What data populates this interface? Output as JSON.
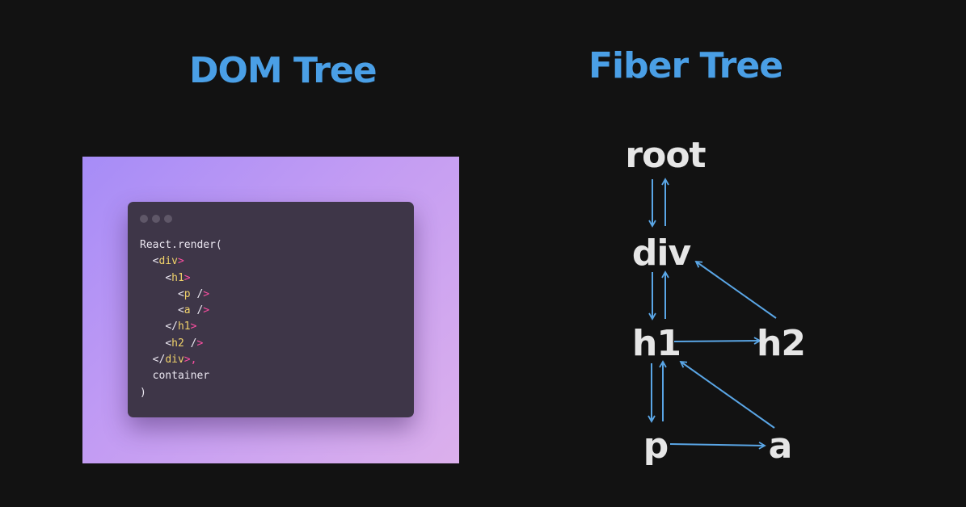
{
  "headings": {
    "dom": "DOM Tree",
    "fiber": "Fiber Tree"
  },
  "code_window": {
    "dots": 3,
    "lines": [
      [
        {
          "t": "React.render(",
          "c": "br"
        }
      ],
      [
        {
          "t": "  ",
          "c": "br"
        },
        {
          "t": "<",
          "c": "br"
        },
        {
          "t": "div",
          "c": "tag"
        },
        {
          "t": ">",
          "c": "pink"
        }
      ],
      [
        {
          "t": "    ",
          "c": "br"
        },
        {
          "t": "<",
          "c": "br"
        },
        {
          "t": "h1",
          "c": "tag"
        },
        {
          "t": ">",
          "c": "pink"
        }
      ],
      [
        {
          "t": "      ",
          "c": "br"
        },
        {
          "t": "<",
          "c": "br"
        },
        {
          "t": "p",
          "c": "tag"
        },
        {
          "t": " /",
          "c": "br"
        },
        {
          "t": ">",
          "c": "pink"
        }
      ],
      [
        {
          "t": "      ",
          "c": "br"
        },
        {
          "t": "<",
          "c": "br"
        },
        {
          "t": "a",
          "c": "tag"
        },
        {
          "t": " /",
          "c": "br"
        },
        {
          "t": ">",
          "c": "pink"
        }
      ],
      [
        {
          "t": "    ",
          "c": "br"
        },
        {
          "t": "</",
          "c": "br"
        },
        {
          "t": "h1",
          "c": "tag"
        },
        {
          "t": ">",
          "c": "pink"
        }
      ],
      [
        {
          "t": "    ",
          "c": "br"
        },
        {
          "t": "<",
          "c": "br"
        },
        {
          "t": "h2",
          "c": "tag"
        },
        {
          "t": " /",
          "c": "br"
        },
        {
          "t": ">",
          "c": "pink"
        }
      ],
      [
        {
          "t": "  ",
          "c": "br"
        },
        {
          "t": "</",
          "c": "br"
        },
        {
          "t": "div",
          "c": "tag"
        },
        {
          "t": ">,",
          "c": "pink"
        }
      ],
      [
        {
          "t": "  container",
          "c": "br"
        }
      ],
      [
        {
          "t": ")",
          "c": "br"
        }
      ]
    ]
  },
  "fiber_tree": {
    "nodes": [
      {
        "id": "root",
        "label": "root"
      },
      {
        "id": "div",
        "label": "div"
      },
      {
        "id": "h1",
        "label": "h1"
      },
      {
        "id": "h2",
        "label": "h2"
      },
      {
        "id": "p",
        "label": "p"
      },
      {
        "id": "a",
        "label": "a"
      }
    ],
    "edges": [
      {
        "from": "root",
        "to": "div",
        "relation": "child"
      },
      {
        "from": "div",
        "to": "root",
        "relation": "return"
      },
      {
        "from": "div",
        "to": "h1",
        "relation": "child"
      },
      {
        "from": "h1",
        "to": "div",
        "relation": "return"
      },
      {
        "from": "h1",
        "to": "h2",
        "relation": "sibling"
      },
      {
        "from": "h2",
        "to": "div",
        "relation": "return"
      },
      {
        "from": "h1",
        "to": "p",
        "relation": "child"
      },
      {
        "from": "p",
        "to": "h1",
        "relation": "return"
      },
      {
        "from": "p",
        "to": "a",
        "relation": "sibling"
      },
      {
        "from": "a",
        "to": "h1",
        "relation": "return"
      }
    ]
  },
  "colors": {
    "background": "#121212",
    "heading": "#4a9fe6",
    "node_text": "#e6e6e6",
    "edge": "#5aa6e6",
    "code_bg": "#3e3648",
    "code_tag": "#f0d26a",
    "code_bracket": "#ff4fa3"
  }
}
